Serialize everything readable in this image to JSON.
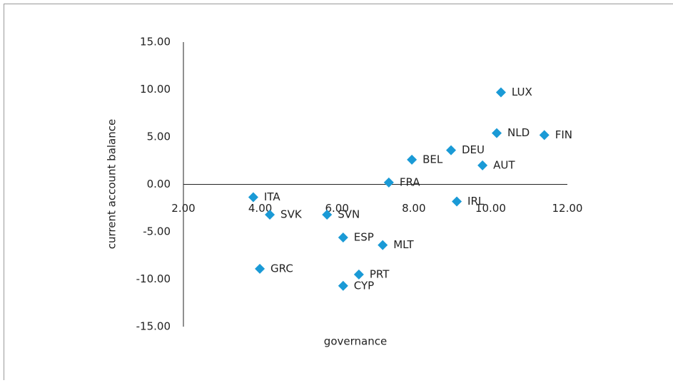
{
  "chart_data": {
    "type": "scatter",
    "x_label": "governance",
    "y_label": "current account balance",
    "color": "#1a9ad6",
    "labels": [
      "LUX",
      "NLD",
      "FIN",
      "DEU",
      "AUT",
      "BEL",
      "FRA",
      "IRL",
      "ITA",
      "SVK",
      "SVN",
      "ESP",
      "MLT",
      "GRC",
      "PRT",
      "CYP"
    ],
    "x": [
      10.27,
      10.16,
      11.4,
      8.97,
      9.79,
      7.95,
      7.35,
      9.12,
      3.82,
      4.25,
      5.74,
      6.16,
      7.19,
      3.99,
      6.57,
      6.16
    ],
    "values": [
      9.7,
      5.4,
      5.2,
      3.6,
      2.0,
      2.6,
      0.2,
      -1.8,
      -1.35,
      -3.2,
      -3.2,
      -5.6,
      -6.4,
      -8.9,
      -9.5,
      -10.7
    ],
    "xlim": [
      2,
      12
    ],
    "ylim": [
      -15,
      15
    ],
    "xticks": [
      {
        "value": 2,
        "label": "2.00"
      },
      {
        "value": 4,
        "label": "4.00"
      },
      {
        "value": 6,
        "label": "6.00"
      },
      {
        "value": 8,
        "label": "8.00"
      },
      {
        "value": 10,
        "label": "10.00"
      },
      {
        "value": 12,
        "label": "12.00"
      }
    ],
    "yticks": [
      {
        "value": 15,
        "label": "15.00"
      },
      {
        "value": 10,
        "label": "10.00"
      },
      {
        "value": 5,
        "label": "5.00"
      },
      {
        "value": 0,
        "label": "0.00"
      },
      {
        "value": -5,
        "label": "-5.00"
      },
      {
        "value": -10,
        "label": "-10.00"
      },
      {
        "value": -15,
        "label": "-15.00"
      }
    ]
  }
}
